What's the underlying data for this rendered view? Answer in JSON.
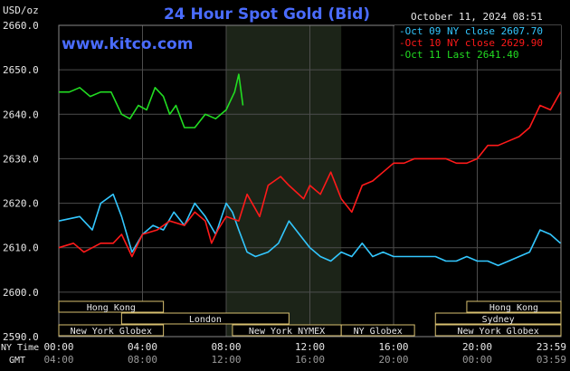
{
  "chart_data": {
    "type": "line",
    "title": "24 Hour Spot Gold (Bid)",
    "unit_label": "USD/oz",
    "timestamp": "October 11, 2024 08:51",
    "watermark": "www.kitco.com",
    "ylim": [
      2590,
      2660
    ],
    "y_ticks": [
      "2660.0",
      "2650.0",
      "2640.0",
      "2630.0",
      "2620.0",
      "2610.0",
      "2600.0",
      "2590.0"
    ],
    "x_axis_ny_label": "NY Time",
    "x_axis_gmt_label": "GMT",
    "x_ticks_ny": [
      "00:00",
      "04:00",
      "08:00",
      "12:00",
      "16:00",
      "20:00",
      "23:59"
    ],
    "x_ticks_gmt": [
      "04:00",
      "08:00",
      "12:00",
      "16:00",
      "20:00",
      "00:00",
      "03:59"
    ],
    "legend_position": "top-right",
    "series": [
      {
        "name": "Oct 09 NY close 2607.70",
        "color": "#33c7ff",
        "x": [
          0.0,
          1.0,
          1.6,
          2.0,
          2.6,
          3.0,
          3.5,
          4.0,
          4.5,
          5.0,
          5.5,
          6.0,
          6.5,
          7.0,
          7.5,
          8.0,
          8.3,
          8.6,
          9.0,
          9.4,
          10.0,
          10.5,
          11.0,
          11.5,
          12.0,
          12.5,
          13.0,
          13.5,
          14.0,
          14.5,
          15.0,
          15.5,
          16.0,
          16.5,
          17.0,
          17.5,
          18.0,
          18.5,
          19.0,
          19.5,
          20.0,
          20.5,
          21.0,
          21.5,
          22.0,
          22.5,
          23.0,
          23.5,
          23.98
        ],
        "values": [
          2616,
          2617,
          2614,
          2620,
          2622,
          2617,
          2609,
          2613,
          2615,
          2614,
          2618,
          2615,
          2620,
          2617,
          2613,
          2620,
          2618,
          2614,
          2609,
          2608,
          2609,
          2611,
          2616,
          2613,
          2610,
          2608,
          2607,
          2609,
          2608,
          2611,
          2608,
          2609,
          2608,
          2608,
          2608,
          2608,
          2608,
          2607,
          2607,
          2608,
          2607,
          2607,
          2606,
          2607,
          2608,
          2609,
          2614,
          2613,
          2611
        ]
      },
      {
        "name": "Oct 10 NY close 2629.90",
        "color": "#ff1a1a",
        "x": [
          0.0,
          0.7,
          1.2,
          2.0,
          2.6,
          3.0,
          3.5,
          4.0,
          4.7,
          5.3,
          6.0,
          6.5,
          7.0,
          7.3,
          7.6,
          8.0,
          8.6,
          9.0,
          9.6,
          10.0,
          10.6,
          11.0,
          11.7,
          12.0,
          12.5,
          13.0,
          13.5,
          14.0,
          14.5,
          15.0,
          15.5,
          16.0,
          16.5,
          17.0,
          17.5,
          18.0,
          18.5,
          19.0,
          19.5,
          20.0,
          20.5,
          21.0,
          21.5,
          22.0,
          22.5,
          23.0,
          23.5,
          23.98
        ],
        "values": [
          2610,
          2611,
          2609,
          2611,
          2611,
          2613,
          2608,
          2613,
          2614,
          2616,
          2615,
          2618,
          2616,
          2611,
          2614,
          2617,
          2616,
          2622,
          2617,
          2624,
          2626,
          2624,
          2621,
          2624,
          2622,
          2627,
          2621,
          2618,
          2624,
          2625,
          2627,
          2629,
          2629,
          2630,
          2630,
          2630,
          2630,
          2629,
          2629,
          2630,
          2633,
          2633,
          2634,
          2635,
          2637,
          2642,
          2641,
          2645
        ]
      },
      {
        "name": "Oct 11 Last 2641.40",
        "color": "#22dd22",
        "x": [
          0.0,
          0.5,
          1.0,
          1.5,
          2.0,
          2.5,
          3.0,
          3.4,
          3.8,
          4.2,
          4.6,
          5.0,
          5.3,
          5.6,
          6.0,
          6.5,
          7.0,
          7.5,
          8.0,
          8.4,
          8.6,
          8.8
        ],
        "values": [
          2645,
          2645,
          2646,
          2644,
          2645,
          2645,
          2640,
          2639,
          2642,
          2641,
          2646,
          2644,
          2640,
          2642,
          2637,
          2637,
          2640,
          2639,
          2641,
          2645,
          2649,
          2642
        ]
      }
    ],
    "shaded_region_hours": [
      8.0,
      13.5
    ],
    "market_sessions": [
      {
        "label": "Hong Kong",
        "start": 0.0,
        "end": 5.0,
        "row": 0
      },
      {
        "label": "London",
        "start": 3.0,
        "end": 11.0,
        "row": 1
      },
      {
        "label": "New York Globex",
        "start": 0.0,
        "end": 5.0,
        "row": 2
      },
      {
        "label": "New York NYMEX",
        "start": 8.3,
        "end": 13.5,
        "row": 2
      },
      {
        "label": "NY Globex",
        "start": 13.5,
        "end": 17.0,
        "row": 2
      },
      {
        "label": "Hong Kong",
        "start": 19.5,
        "end": 24.0,
        "row": 0
      },
      {
        "label": "Sydney",
        "start": 18.0,
        "end": 24.0,
        "row": 1
      },
      {
        "label": "New York Globex",
        "start": 18.0,
        "end": 24.0,
        "row": 2
      }
    ],
    "colors": {
      "background": "#000000",
      "grid": "#4d4d4d",
      "title": "#4a6cff",
      "shaded": "#1c2418",
      "session_border": "#d8c070",
      "text": "#e8e8e8"
    }
  }
}
